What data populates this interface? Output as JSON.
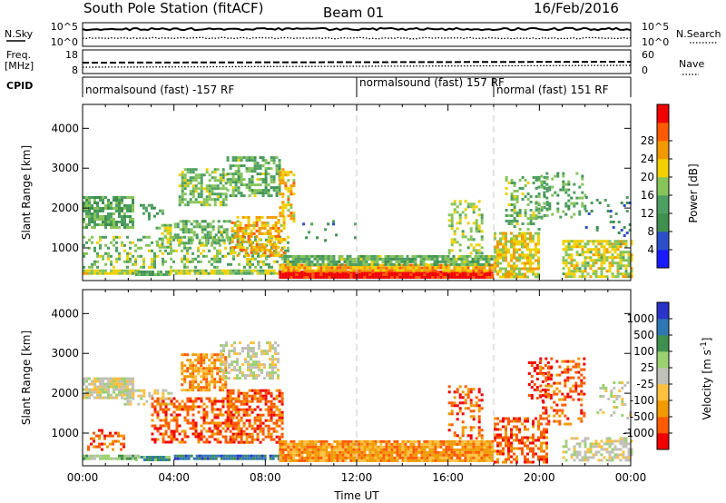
{
  "header": {
    "station": "South Pole Station (fitACF)",
    "beam": "Beam 01",
    "date": "16/Feb/2016"
  },
  "top_panels": {
    "nsky": {
      "label": "N.Sky",
      "ticks": [
        "10^5",
        "10^0"
      ]
    },
    "nsearch": {
      "label": "N.Search",
      "ticks": [
        "10^5",
        "10^0"
      ]
    },
    "freq": {
      "label": "Freq.",
      "unit": "[MHz]",
      "ticks": [
        "18",
        "8"
      ]
    },
    "nave": {
      "label": "Nave",
      "ticks": [
        "60",
        "0"
      ]
    },
    "cpid": {
      "label": "CPID",
      "segments": [
        {
          "start": 0,
          "end": 12,
          "text": "normalsound (fast) -157 RF"
        },
        {
          "start": 12,
          "end": 18,
          "text": "normalsound (fast) 157 RF"
        },
        {
          "start": 18,
          "end": 24,
          "text": "normal (fast) 151 RF"
        }
      ]
    }
  },
  "colors": {
    "power": [
      "#1a1aff",
      "#2b4fc9",
      "#3f8f4e",
      "#4d9e61",
      "#86c45a",
      "#f0d000",
      "#f09a00",
      "#ff5a00",
      "#f00000"
    ],
    "velocity": [
      "#f00000",
      "#ff5a00",
      "#f09a00",
      "#ffc040",
      "#c0c0b8",
      "#9bd170",
      "#3f8f4e",
      "#2e77b3",
      "#2a33c8"
    ]
  },
  "chart_data": [
    {
      "type": "heatmap",
      "name": "Power",
      "ylabel": "Slant Range [km]",
      "x_range_hours": [
        0,
        24
      ],
      "ylim": [
        180,
        4600
      ],
      "y_ticks": [
        1000,
        2000,
        3000,
        4000
      ],
      "x_ticks": [
        "00:00",
        "04:00",
        "08:00",
        "12:00",
        "16:00",
        "20:00",
        "00:00"
      ],
      "colorbar": {
        "label": "Power [dB]",
        "ticks": [
          "4",
          "8",
          "12",
          "16",
          "20",
          "24",
          "28"
        ],
        "range": [
          0,
          30
        ]
      },
      "blobs": [
        {
          "t": [
            0.0,
            2.5
          ],
          "r": [
            330,
            460
          ],
          "v": 17,
          "d": 0.95
        },
        {
          "t": [
            0.0,
            2.2
          ],
          "r": [
            1500,
            2300
          ],
          "v": 12,
          "d": 0.75
        },
        {
          "t": [
            2.3,
            3.8
          ],
          "r": [
            340,
            430
          ],
          "v": 11,
          "d": 0.9
        },
        {
          "t": [
            2.5,
            3.5
          ],
          "r": [
            1700,
            2100
          ],
          "v": 10,
          "d": 0.4
        },
        {
          "t": [
            3.2,
            3.9
          ],
          "r": [
            1000,
            1600
          ],
          "v": 15,
          "d": 0.6
        },
        {
          "t": [
            4.2,
            6.3
          ],
          "r": [
            2100,
            3000
          ],
          "v": 14,
          "d": 0.6
        },
        {
          "t": [
            4.0,
            6.8
          ],
          "r": [
            1100,
            1700
          ],
          "v": 13,
          "d": 0.55
        },
        {
          "t": [
            6.3,
            8.6
          ],
          "r": [
            2300,
            3300
          ],
          "v": 13,
          "d": 0.6
        },
        {
          "t": [
            3.8,
            8.6
          ],
          "r": [
            330,
            460
          ],
          "v": 16,
          "d": 0.95
        },
        {
          "t": [
            0.0,
            9.0
          ],
          "r": [
            500,
            1300
          ],
          "v": 14,
          "d": 0.35
        },
        {
          "t": [
            6.5,
            8.8
          ],
          "r": [
            800,
            1800
          ],
          "v": 20,
          "d": 0.6
        },
        {
          "t": [
            8.6,
            9.2
          ],
          "r": [
            1700,
            3000
          ],
          "v": 20,
          "d": 0.4
        },
        {
          "t": [
            8.6,
            18.0
          ],
          "r": [
            280,
            430
          ],
          "v": 29,
          "d": 1.0
        },
        {
          "t": [
            8.6,
            18.0
          ],
          "r": [
            430,
            600
          ],
          "v": 21,
          "d": 0.95
        },
        {
          "t": [
            8.8,
            18.0
          ],
          "r": [
            600,
            820
          ],
          "v": 13,
          "d": 0.85
        },
        {
          "t": [
            9.5,
            12.0
          ],
          "r": [
            1200,
            1700
          ],
          "v": 9,
          "d": 0.05
        },
        {
          "t": [
            16.0,
            17.5
          ],
          "r": [
            900,
            2200
          ],
          "v": 16,
          "d": 0.35
        },
        {
          "t": [
            18.0,
            20.0
          ],
          "r": [
            300,
            1400
          ],
          "v": 18,
          "d": 0.7
        },
        {
          "t": [
            18.5,
            20.3
          ],
          "r": [
            1500,
            2800
          ],
          "v": 14,
          "d": 0.3
        },
        {
          "t": [
            19.8,
            22.0
          ],
          "r": [
            1800,
            2900
          ],
          "v": 12,
          "d": 0.25
        },
        {
          "t": [
            21.0,
            24.0
          ],
          "r": [
            300,
            1200
          ],
          "v": 17,
          "d": 0.7
        },
        {
          "t": [
            22.0,
            24.0
          ],
          "r": [
            1300,
            2300
          ],
          "v": 9,
          "d": 0.15
        }
      ]
    },
    {
      "type": "heatmap",
      "name": "Velocity",
      "ylabel": "Slant Range [km]",
      "xlabel": "Time UT",
      "x_range_hours": [
        0,
        24
      ],
      "ylim": [
        180,
        4600
      ],
      "y_ticks": [
        1000,
        2000,
        3000,
        4000
      ],
      "x_ticks": [
        "00:00",
        "04:00",
        "08:00",
        "12:00",
        "16:00",
        "20:00",
        "00:00"
      ],
      "colorbar": {
        "label": "Velocity [m s^-1]",
        "ticks": [
          "-1000",
          "-500",
          "-100",
          "-25",
          "25",
          "100",
          "500",
          "1000"
        ],
        "levels": 9
      },
      "blobs": [
        {
          "t": [
            0.0,
            2.2
          ],
          "r": [
            1900,
            2400
          ],
          "v": 4,
          "d": 0.85
        },
        {
          "t": [
            1.8,
            4.0
          ],
          "r": [
            1700,
            2100
          ],
          "v": 4,
          "d": 0.5
        },
        {
          "t": [
            0.0,
            2.5
          ],
          "r": [
            330,
            460
          ],
          "v": 5,
          "d": 0.9
        },
        {
          "t": [
            2.3,
            3.8
          ],
          "r": [
            340,
            430
          ],
          "v": 6,
          "d": 0.9
        },
        {
          "t": [
            0.2,
            1.8
          ],
          "r": [
            600,
            1100
          ],
          "v": 1,
          "d": 0.4
        },
        {
          "t": [
            3.0,
            6.8
          ],
          "r": [
            800,
            1900
          ],
          "v": 1,
          "d": 0.55
        },
        {
          "t": [
            4.3,
            6.3
          ],
          "r": [
            2100,
            3000
          ],
          "v": 2,
          "d": 0.6
        },
        {
          "t": [
            6.0,
            8.6
          ],
          "r": [
            2400,
            3300
          ],
          "v": 4,
          "d": 0.55
        },
        {
          "t": [
            6.3,
            8.8
          ],
          "r": [
            800,
            2100
          ],
          "v": 1,
          "d": 0.6
        },
        {
          "t": [
            4.0,
            8.6
          ],
          "r": [
            330,
            460
          ],
          "v": 7,
          "d": 0.9
        },
        {
          "t": [
            8.6,
            18.0
          ],
          "r": [
            280,
            820
          ],
          "v": 2,
          "d": 0.95
        },
        {
          "t": [
            16.0,
            17.5
          ],
          "r": [
            900,
            2200
          ],
          "v": 1,
          "d": 0.35
        },
        {
          "t": [
            18.0,
            20.3
          ],
          "r": [
            300,
            1400
          ],
          "v": 1,
          "d": 0.55
        },
        {
          "t": [
            19.5,
            20.5
          ],
          "r": [
            1800,
            2800
          ],
          "v": 0,
          "d": 0.3
        },
        {
          "t": [
            20.0,
            22.0
          ],
          "r": [
            1200,
            2900
          ],
          "v": 1,
          "d": 0.3
        },
        {
          "t": [
            21.0,
            24.0
          ],
          "r": [
            300,
            900
          ],
          "v": 4,
          "d": 0.55
        },
        {
          "t": [
            22.5,
            24.0
          ],
          "r": [
            1400,
            2300
          ],
          "v": 4,
          "d": 0.2
        }
      ]
    }
  ]
}
